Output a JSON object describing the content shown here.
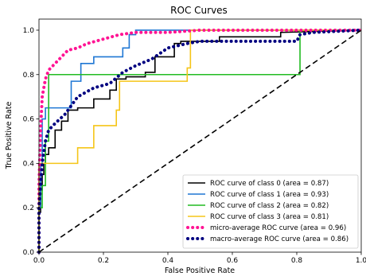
{
  "chart_data": {
    "type": "line",
    "title": "ROC Curves",
    "xlabel": "False Positive Rate",
    "ylabel": "True Positive Rate",
    "xlim": [
      0.0,
      1.0
    ],
    "ylim": [
      0.0,
      1.05
    ],
    "xticks": [
      "0.0",
      "0.2",
      "0.4",
      "0.6",
      "0.8",
      "1.0"
    ],
    "yticks": [
      "0.0",
      "0.2",
      "0.4",
      "0.6",
      "0.8",
      "1.0"
    ],
    "grid": false,
    "legend_position": "lower-right",
    "series": [
      {
        "name": "ROC curve of class 0 (area = 0.87)",
        "color": "#000000",
        "style": "solid",
        "x": [
          0.0,
          0.0,
          0.005,
          0.005,
          0.01,
          0.01,
          0.015,
          0.015,
          0.02,
          0.02,
          0.03,
          0.03,
          0.05,
          0.05,
          0.07,
          0.07,
          0.09,
          0.09,
          0.12,
          0.12,
          0.17,
          0.17,
          0.22,
          0.22,
          0.24,
          0.24,
          0.27,
          0.27,
          0.33,
          0.33,
          0.36,
          0.36,
          0.42,
          0.42,
          0.44,
          0.44,
          0.56,
          0.56,
          0.75,
          0.75,
          1.0
        ],
        "y": [
          0.0,
          0.18,
          0.18,
          0.28,
          0.28,
          0.35,
          0.35,
          0.4,
          0.4,
          0.44,
          0.44,
          0.47,
          0.47,
          0.55,
          0.55,
          0.59,
          0.59,
          0.64,
          0.64,
          0.65,
          0.65,
          0.69,
          0.69,
          0.73,
          0.73,
          0.78,
          0.78,
          0.79,
          0.79,
          0.81,
          0.81,
          0.88,
          0.88,
          0.94,
          0.94,
          0.95,
          0.95,
          0.97,
          0.97,
          0.99,
          1.0
        ]
      },
      {
        "name": "ROC curve of class 1 (area = 0.93)",
        "color": "#1f77d4",
        "style": "solid",
        "x": [
          0.0,
          0.0,
          0.005,
          0.005,
          0.01,
          0.01,
          0.02,
          0.02,
          0.1,
          0.1,
          0.13,
          0.13,
          0.17,
          0.17,
          0.26,
          0.26,
          0.28,
          0.28,
          0.3,
          0.3,
          1.0
        ],
        "y": [
          0.0,
          0.2,
          0.2,
          0.4,
          0.4,
          0.6,
          0.6,
          0.65,
          0.65,
          0.77,
          0.77,
          0.85,
          0.85,
          0.88,
          0.88,
          0.92,
          0.92,
          0.98,
          0.98,
          1.0,
          1.0
        ]
      },
      {
        "name": "ROC curve of class 2 (area = 0.82)",
        "color": "#22bb22",
        "style": "solid",
        "x": [
          0.0,
          0.0,
          0.01,
          0.01,
          0.02,
          0.02,
          0.03,
          0.03,
          0.81,
          0.81,
          1.0
        ],
        "y": [
          0.0,
          0.2,
          0.2,
          0.3,
          0.3,
          0.5,
          0.5,
          0.8,
          0.8,
          1.0,
          1.0
        ]
      },
      {
        "name": "ROC curve of class 3 (area = 0.81)",
        "color": "#f5c518",
        "style": "solid",
        "x": [
          0.0,
          0.0,
          0.01,
          0.01,
          0.12,
          0.12,
          0.17,
          0.17,
          0.24,
          0.24,
          0.25,
          0.25,
          0.46,
          0.46,
          0.47,
          0.47,
          1.0
        ],
        "y": [
          0.0,
          0.4,
          0.4,
          0.4,
          0.4,
          0.47,
          0.47,
          0.57,
          0.57,
          0.64,
          0.64,
          0.77,
          0.77,
          0.83,
          0.83,
          1.0,
          1.0
        ]
      },
      {
        "name": "micro-average ROC curve (area = 0.96)",
        "color": "#ff1493",
        "style": "dotted",
        "x": [
          0.0,
          0.0,
          0.005,
          0.01,
          0.02,
          0.03,
          0.05,
          0.07,
          0.09,
          0.12,
          0.15,
          0.2,
          0.25,
          0.3,
          0.4,
          0.5,
          0.6,
          0.8,
          1.0
        ],
        "y": [
          0.0,
          0.3,
          0.55,
          0.7,
          0.78,
          0.82,
          0.85,
          0.88,
          0.91,
          0.92,
          0.94,
          0.96,
          0.98,
          0.99,
          0.99,
          1.0,
          1.0,
          1.0,
          1.0
        ]
      },
      {
        "name": "macro-average ROC curve (area = 0.86)",
        "color": "#000080",
        "style": "dotted",
        "x": [
          0.0,
          0.0,
          0.005,
          0.01,
          0.02,
          0.03,
          0.05,
          0.08,
          0.12,
          0.17,
          0.22,
          0.26,
          0.3,
          0.35,
          0.4,
          0.46,
          0.5,
          0.6,
          0.8,
          0.81,
          0.85,
          1.0
        ],
        "y": [
          0.0,
          0.2,
          0.3,
          0.4,
          0.5,
          0.55,
          0.58,
          0.62,
          0.7,
          0.74,
          0.76,
          0.81,
          0.84,
          0.87,
          0.92,
          0.94,
          0.95,
          0.95,
          0.95,
          0.98,
          0.99,
          1.0
        ]
      },
      {
        "name": "",
        "color": "#000000",
        "style": "dashed",
        "x": [
          0.0,
          1.0
        ],
        "y": [
          0.0,
          1.0
        ]
      }
    ]
  }
}
